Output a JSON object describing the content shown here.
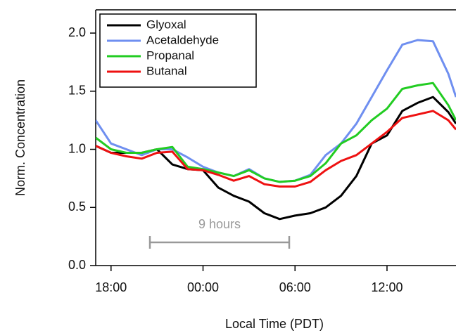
{
  "chart_data": {
    "type": "line",
    "xlabel": "Local Time (PDT)",
    "ylabel": "Norm. Concentration",
    "annotation": "9 hours",
    "x": [
      17,
      18,
      19,
      20,
      21,
      22,
      23,
      24,
      25,
      26,
      27,
      28,
      29,
      30,
      31,
      32,
      33,
      34,
      35,
      36,
      37,
      38,
      39,
      40,
      40.5
    ],
    "series": [
      {
        "name": "Glyoxal",
        "color": "#000000",
        "values": [
          1.03,
          0.97,
          0.97,
          0.97,
          1.0,
          0.87,
          0.83,
          0.82,
          0.67,
          0.6,
          0.55,
          0.45,
          0.4,
          0.43,
          0.45,
          0.5,
          0.6,
          0.77,
          1.05,
          1.12,
          1.33,
          1.4,
          1.45,
          1.32,
          1.22
        ]
      },
      {
        "name": "Acetaldehyde",
        "color": "#6f8ff0",
        "values": [
          1.25,
          1.05,
          1.0,
          0.95,
          1.0,
          1.0,
          0.93,
          0.85,
          0.8,
          0.77,
          0.83,
          0.75,
          0.72,
          0.73,
          0.78,
          0.95,
          1.05,
          1.22,
          1.45,
          1.68,
          1.9,
          1.94,
          1.93,
          1.65,
          1.45
        ]
      },
      {
        "name": "Propanal",
        "color": "#22cc22",
        "values": [
          1.1,
          1.0,
          0.97,
          0.97,
          1.0,
          1.02,
          0.85,
          0.83,
          0.8,
          0.77,
          0.82,
          0.75,
          0.72,
          0.73,
          0.77,
          0.88,
          1.05,
          1.12,
          1.25,
          1.35,
          1.52,
          1.55,
          1.57,
          1.38,
          1.25
        ]
      },
      {
        "name": "Butanal",
        "color": "#ee1111",
        "values": [
          1.03,
          0.97,
          0.94,
          0.92,
          0.97,
          0.98,
          0.83,
          0.82,
          0.78,
          0.73,
          0.77,
          0.7,
          0.68,
          0.68,
          0.72,
          0.82,
          0.9,
          0.95,
          1.05,
          1.15,
          1.27,
          1.3,
          1.33,
          1.25,
          1.17
        ]
      }
    ],
    "xlim": [
      17,
      40.5
    ],
    "xticks": [
      {
        "value": 18,
        "label": "18:00"
      },
      {
        "value": 24,
        "label": "00:00"
      },
      {
        "value": 30,
        "label": "06:00"
      },
      {
        "value": 36,
        "label": "12:00"
      }
    ],
    "ylim": [
      0,
      2.2
    ],
    "yticks": [
      {
        "value": 0,
        "label": "0.0"
      },
      {
        "value": 0.5,
        "label": "0.5"
      },
      {
        "value": 1,
        "label": "1.0"
      },
      {
        "value": 1.5,
        "label": "1.5"
      },
      {
        "value": 2,
        "label": "2.0"
      }
    ],
    "legend": "upper-left"
  }
}
